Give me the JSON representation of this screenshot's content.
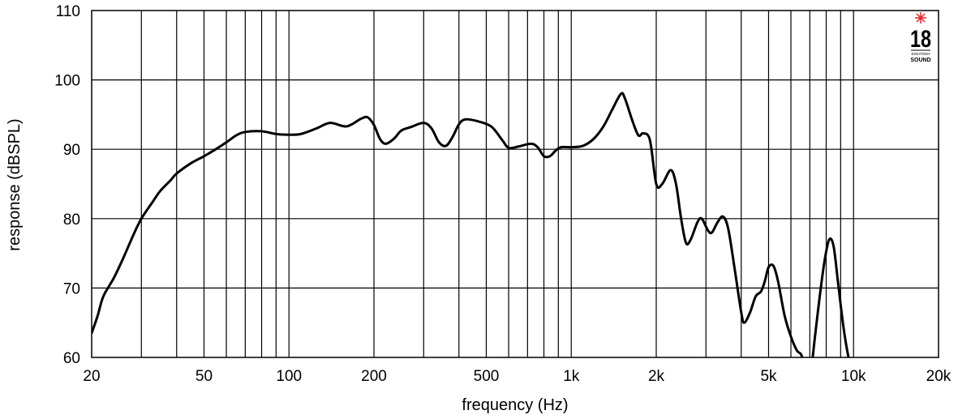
{
  "chart_data": {
    "type": "line",
    "title": "",
    "xlabel": "frequency (Hz)",
    "ylabel": "response (dBSPL)",
    "x_scale": "log",
    "xlim": [
      20,
      20000
    ],
    "ylim": [
      60,
      110
    ],
    "grid": true,
    "x_ticks": [
      {
        "value": 20,
        "label": "20"
      },
      {
        "value": 50,
        "label": "50"
      },
      {
        "value": 100,
        "label": "100"
      },
      {
        "value": 200,
        "label": "200"
      },
      {
        "value": 500,
        "label": "500"
      },
      {
        "value": 1000,
        "label": "1k"
      },
      {
        "value": 2000,
        "label": "2k"
      },
      {
        "value": 5000,
        "label": "5k"
      },
      {
        "value": 10000,
        "label": "10k"
      },
      {
        "value": 20000,
        "label": "20k"
      }
    ],
    "x_gridlines": [
      30,
      40,
      50,
      60,
      70,
      80,
      90,
      100,
      200,
      300,
      400,
      500,
      600,
      700,
      800,
      900,
      1000,
      2000,
      3000,
      4000,
      5000,
      6000,
      7000,
      8000,
      9000,
      10000
    ],
    "y_ticks": [
      {
        "value": 60,
        "label": "60"
      },
      {
        "value": 70,
        "label": "70"
      },
      {
        "value": 80,
        "label": "80"
      },
      {
        "value": 90,
        "label": "90"
      },
      {
        "value": 100,
        "label": "100"
      },
      {
        "value": 110,
        "label": "110"
      }
    ],
    "series": [
      {
        "color": "#000000",
        "points": [
          [
            20,
            63.5
          ],
          [
            21,
            66
          ],
          [
            22,
            68.8
          ],
          [
            24,
            71.5
          ],
          [
            26,
            74.5
          ],
          [
            28,
            77.5
          ],
          [
            30,
            80
          ],
          [
            33,
            82.5
          ],
          [
            35,
            84
          ],
          [
            38,
            85.5
          ],
          [
            40,
            86.5
          ],
          [
            45,
            88
          ],
          [
            50,
            89
          ],
          [
            55,
            90
          ],
          [
            60,
            91
          ],
          [
            65,
            92
          ],
          [
            70,
            92.5
          ],
          [
            80,
            92.6
          ],
          [
            90,
            92.2
          ],
          [
            100,
            92.1
          ],
          [
            110,
            92.2
          ],
          [
            125,
            93
          ],
          [
            140,
            93.8
          ],
          [
            160,
            93.3
          ],
          [
            180,
            94.4
          ],
          [
            190,
            94.6
          ],
          [
            200,
            93.5
          ],
          [
            210,
            91.5
          ],
          [
            220,
            90.8
          ],
          [
            235,
            91.5
          ],
          [
            250,
            92.7
          ],
          [
            270,
            93.2
          ],
          [
            300,
            93.8
          ],
          [
            320,
            93
          ],
          [
            340,
            91
          ],
          [
            360,
            90.5
          ],
          [
            380,
            91.8
          ],
          [
            400,
            93.6
          ],
          [
            420,
            94.3
          ],
          [
            460,
            94.1
          ],
          [
            520,
            93.3
          ],
          [
            570,
            91.3
          ],
          [
            600,
            90.2
          ],
          [
            650,
            90.4
          ],
          [
            720,
            90.8
          ],
          [
            760,
            90.3
          ],
          [
            800,
            89
          ],
          [
            840,
            89
          ],
          [
            880,
            89.8
          ],
          [
            920,
            90.3
          ],
          [
            1000,
            90.3
          ],
          [
            1100,
            90.5
          ],
          [
            1200,
            91.5
          ],
          [
            1300,
            93.3
          ],
          [
            1400,
            95.8
          ],
          [
            1500,
            98
          ],
          [
            1550,
            97.3
          ],
          [
            1650,
            94
          ],
          [
            1730,
            92
          ],
          [
            1800,
            92.3
          ],
          [
            1900,
            91.3
          ],
          [
            2000,
            85
          ],
          [
            2100,
            85
          ],
          [
            2250,
            87
          ],
          [
            2350,
            85
          ],
          [
            2450,
            80
          ],
          [
            2550,
            76.5
          ],
          [
            2650,
            77
          ],
          [
            2800,
            79.5
          ],
          [
            2900,
            80
          ],
          [
            3050,
            78.3
          ],
          [
            3150,
            78
          ],
          [
            3300,
            79.5
          ],
          [
            3450,
            80.3
          ],
          [
            3600,
            78.5
          ],
          [
            3800,
            72.5
          ],
          [
            4000,
            66.5
          ],
          [
            4100,
            65
          ],
          [
            4300,
            66.5
          ],
          [
            4500,
            68.8
          ],
          [
            4700,
            69.5
          ],
          [
            4850,
            71
          ],
          [
            5000,
            73
          ],
          [
            5200,
            73.2
          ],
          [
            5400,
            71
          ],
          [
            5700,
            66
          ],
          [
            6000,
            63
          ],
          [
            6300,
            61
          ],
          [
            6500,
            60.5
          ],
          [
            6700,
            59.3
          ],
          [
            6900,
            59
          ],
          [
            7100,
            59
          ],
          [
            7300,
            63
          ],
          [
            7600,
            69
          ],
          [
            7900,
            74
          ],
          [
            8200,
            77
          ],
          [
            8500,
            76
          ],
          [
            8800,
            71
          ],
          [
            9200,
            64.5
          ],
          [
            9600,
            60
          ],
          [
            9800,
            59.3
          ]
        ]
      }
    ]
  },
  "logo": {
    "text": "18",
    "subtext_1": "EIGHTEEN",
    "subtext_2": "SOUND",
    "star_color": "#e32228"
  }
}
